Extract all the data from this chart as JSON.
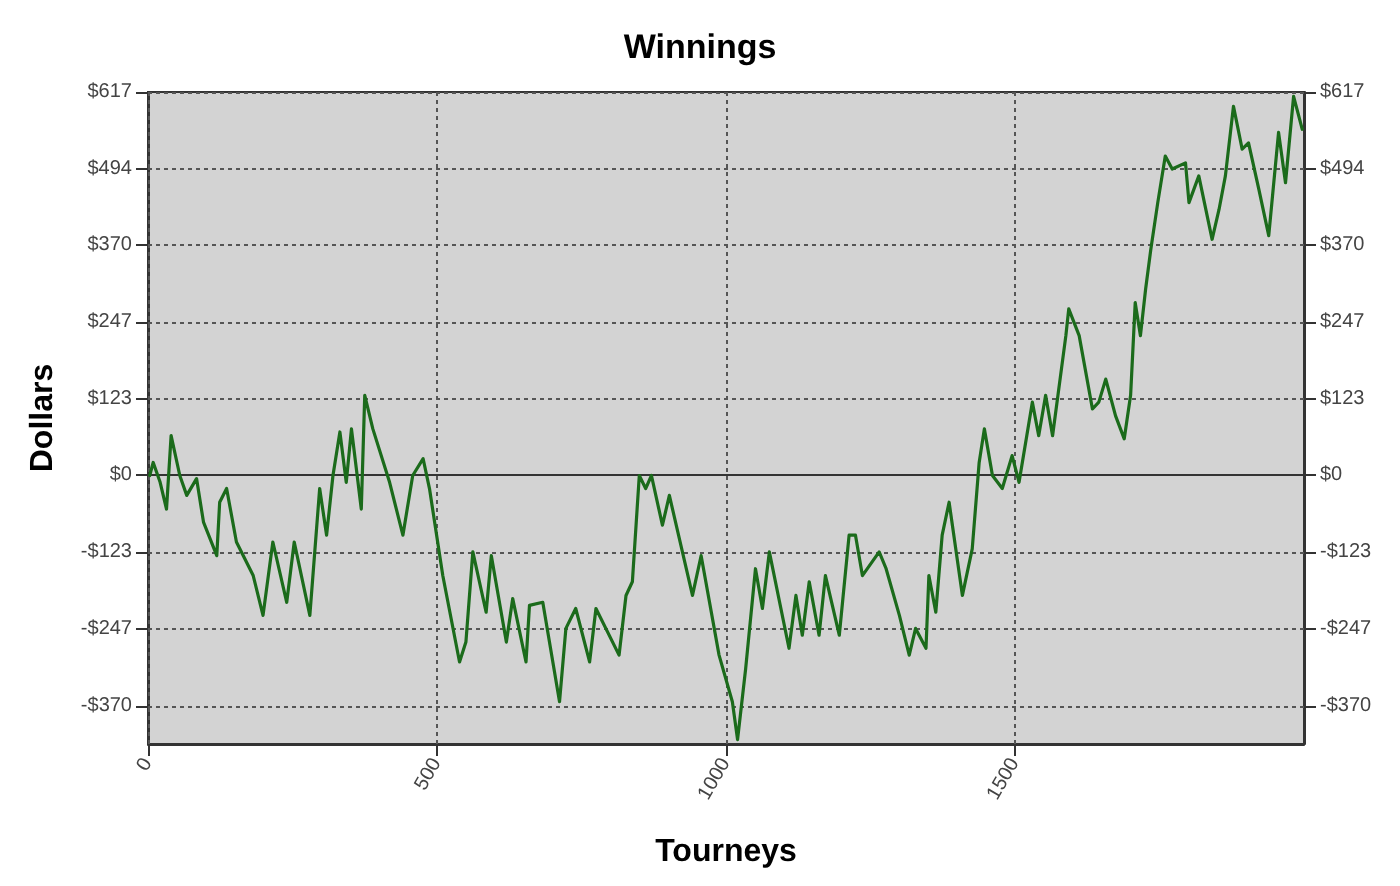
{
  "chart_data": {
    "type": "line",
    "title": "Winnings",
    "xlabel": "Tourneys",
    "ylabel": "Dollars",
    "x": [
      3,
      9,
      21,
      32,
      40,
      55,
      67,
      84,
      96,
      119,
      124,
      136,
      153,
      182,
      199,
      216,
      240,
      253,
      280,
      297,
      309,
      320,
      332,
      343,
      352,
      369,
      375,
      389,
      418,
      441,
      458,
      476,
      487,
      510,
      539,
      550,
      562,
      585,
      594,
      620,
      631,
      654,
      660,
      683,
      712,
      723,
      740,
      764,
      775,
      815,
      827,
      838,
      850,
      861,
      871,
      890,
      902,
      942,
      957,
      988,
      1011,
      1020,
      1034,
      1051,
      1063,
      1075,
      1109,
      1121,
      1132,
      1144,
      1161,
      1172,
      1196,
      1213,
      1224,
      1236,
      1265,
      1277,
      1300,
      1317,
      1328,
      1346,
      1351,
      1363,
      1374,
      1386,
      1409,
      1426,
      1438,
      1447,
      1461,
      1478,
      1495,
      1507,
      1530,
      1541,
      1553,
      1565,
      1588,
      1593,
      1611,
      1634,
      1645,
      1657,
      1674,
      1689,
      1700,
      1708,
      1717,
      1726,
      1735,
      1747,
      1760,
      1772,
      1795,
      1801,
      1818,
      1841,
      1853,
      1864,
      1878,
      1893,
      1904,
      1922,
      1939,
      1956,
      1968,
      1982,
      1997
    ],
    "series": [
      {
        "color": "#1b6b1b",
        "values": [
          0,
          21,
          -11,
          -54,
          64,
          0,
          -32,
          -5,
          -75,
          -129,
          -43,
          -21,
          -107,
          -161,
          -225,
          -107,
          -204,
          -107,
          -225,
          -21,
          -96,
          0,
          70,
          -11,
          75,
          -54,
          129,
          75,
          -11,
          -96,
          0,
          27,
          -21,
          -161,
          -300,
          -268,
          -123,
          -220,
          -129,
          -268,
          -198,
          -300,
          -209,
          -204,
          -364,
          -246,
          -214,
          -300,
          -214,
          -289,
          -193,
          -171,
          0,
          -21,
          0,
          -80,
          -32,
          -193,
          -129,
          -289,
          -364,
          -425,
          -311,
          -150,
          -214,
          -123,
          -278,
          -193,
          -257,
          -171,
          -257,
          -161,
          -257,
          -96,
          -96,
          -161,
          -123,
          -150,
          -225,
          -289,
          -246,
          -278,
          -161,
          -220,
          -96,
          -43,
          -193,
          -118,
          21,
          75,
          0,
          -21,
          32,
          -11,
          118,
          64,
          129,
          64,
          225,
          268,
          225,
          107,
          118,
          155,
          96,
          59,
          129,
          278,
          225,
          300,
          364,
          439,
          514,
          493,
          503,
          439,
          482,
          380,
          428,
          482,
          594,
          525,
          535,
          460,
          386,
          552,
          471,
          610,
          557
        ]
      }
    ],
    "xlim": [
      0,
      2000
    ],
    "xticks": [
      0,
      500,
      1000,
      1500
    ],
    "ylim": [
      -432,
      617
    ],
    "yticks": [
      {
        "value": 617,
        "label": "$617"
      },
      {
        "value": 493.6,
        "label": "$494"
      },
      {
        "value": 370.2,
        "label": "$370"
      },
      {
        "value": 246.8,
        "label": "$247"
      },
      {
        "value": 123.4,
        "label": "$123"
      },
      {
        "value": 0,
        "label": "$0"
      },
      {
        "value": -123.4,
        "label": "-$123"
      },
      {
        "value": -246.8,
        "label": "-$247"
      },
      {
        "value": -370.2,
        "label": "-$370"
      }
    ],
    "y2lim": [
      -432,
      617
    ],
    "y2ticks": [
      {
        "value": 617,
        "label": "$617"
      },
      {
        "value": 493.6,
        "label": "$494"
      },
      {
        "value": 370.2,
        "label": "$370"
      },
      {
        "value": 246.8,
        "label": "$247"
      },
      {
        "value": 123.4,
        "label": "$123"
      },
      {
        "value": 0,
        "label": "$0"
      },
      {
        "value": -123.4,
        "label": "-$123"
      },
      {
        "value": -246.8,
        "label": "-$247"
      },
      {
        "value": -370.2,
        "label": "-$370"
      }
    ],
    "ref_lines": [
      {
        "axis": "y",
        "value": 0,
        "color": "#333333",
        "line_style": "solid"
      }
    ],
    "grid": true,
    "marker": "none",
    "line_style": "solid"
  }
}
